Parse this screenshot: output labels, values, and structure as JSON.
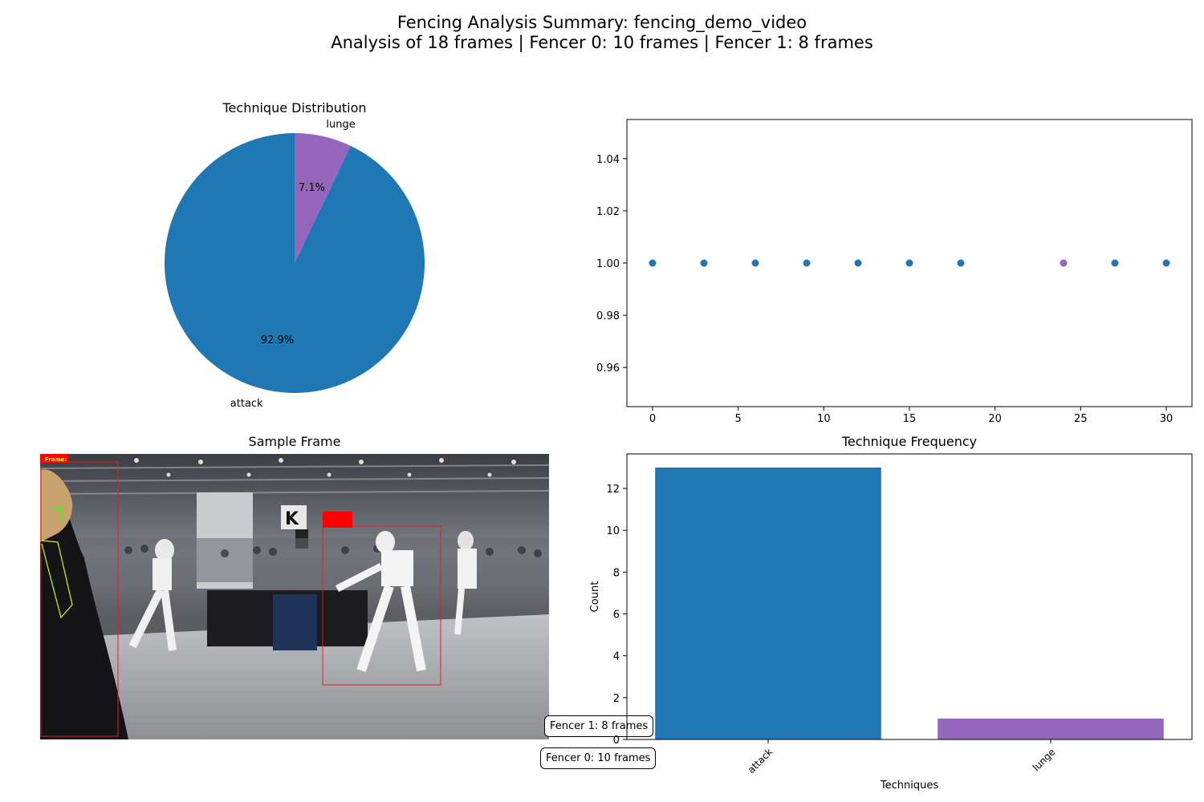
{
  "figure": {
    "title_line1": "Fencing Analysis Summary: fencing_demo_video",
    "title_line2": "Analysis of 18 frames | Fencer 0: 10 frames | Fencer 1: 8 frames"
  },
  "colors": {
    "attack": "#1f77b4",
    "lunge": "#9467bd"
  },
  "sample_frame": {
    "title": "Sample Frame",
    "overlay_text": "Frame:",
    "notes": [
      "Fencer 1: 8 frames",
      "Fencer 0: 10 frames"
    ]
  },
  "chart_data": [
    {
      "type": "pie",
      "title": "Technique Distribution",
      "labels": [
        "lunge",
        "attack"
      ],
      "values": [
        7.1,
        92.9
      ],
      "value_labels": [
        "7.1%",
        "92.9%"
      ]
    },
    {
      "type": "scatter",
      "title": "",
      "x": [
        0,
        3,
        6,
        9,
        12,
        15,
        18,
        24,
        27,
        30
      ],
      "y": [
        1,
        1,
        1,
        1,
        1,
        1,
        1,
        1,
        1,
        1
      ],
      "point_colors": [
        "#1f77b4",
        "#1f77b4",
        "#1f77b4",
        "#1f77b4",
        "#1f77b4",
        "#1f77b4",
        "#1f77b4",
        "#9467bd",
        "#1f77b4",
        "#1f77b4"
      ],
      "xlim": [
        -1.5,
        31.5
      ],
      "ylim": [
        0.945,
        1.055
      ],
      "xticks": [
        0,
        5,
        10,
        15,
        20,
        25,
        30
      ],
      "yticks": [
        0.96,
        0.98,
        1.0,
        1.02,
        1.04
      ],
      "ytick_labels": [
        "0.96",
        "0.98",
        "1.00",
        "1.02",
        "1.04"
      ]
    },
    {
      "type": "bar",
      "title": "Technique Frequency",
      "categories": [
        "attack",
        "lunge"
      ],
      "values": [
        13,
        1
      ],
      "xlabel": "Techniques",
      "ylabel": "Count",
      "ylim": [
        0,
        13.65
      ],
      "yticks": [
        0,
        2,
        4,
        6,
        8,
        10,
        12
      ]
    }
  ]
}
